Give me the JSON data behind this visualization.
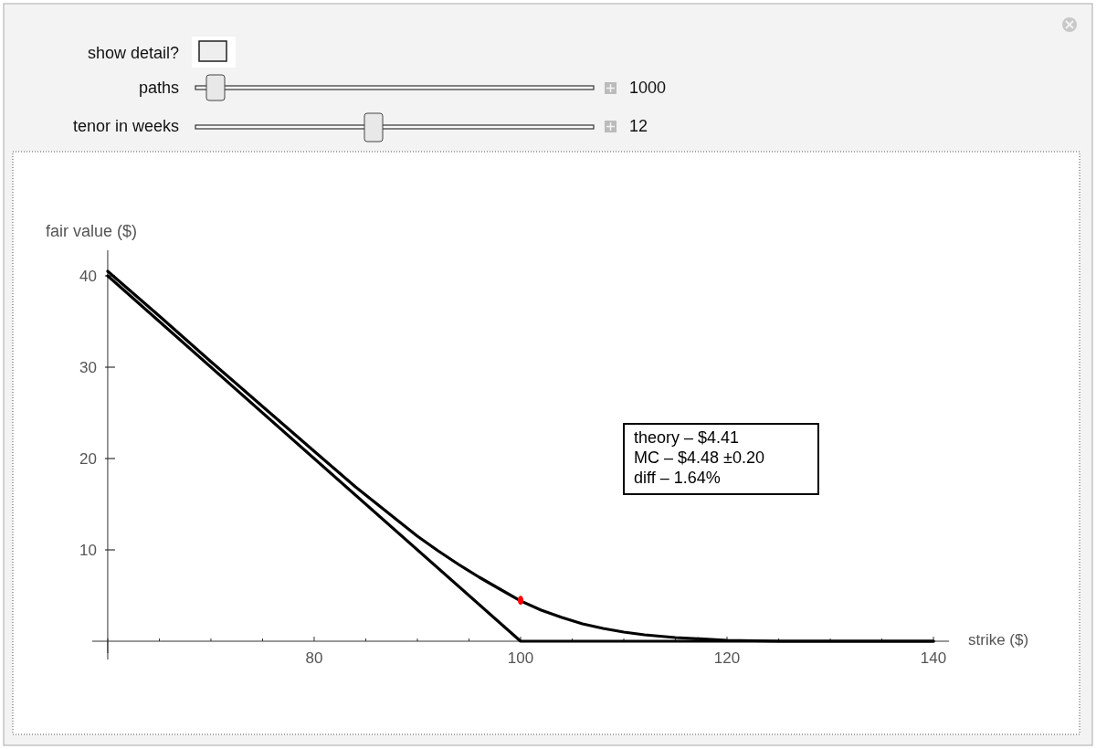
{
  "chart_data": {
    "type": "line",
    "xlabel": "strike ($)",
    "ylabel": "fair value ($)",
    "xlim": [
      58.5,
      141.5
    ],
    "ylim": [
      -1.3,
      42.8
    ],
    "xticks": [
      {
        "value": 60,
        "label": null
      },
      {
        "value": 65,
        "label": null
      },
      {
        "value": 70,
        "label": null
      },
      {
        "value": 75,
        "label": null
      },
      80,
      {
        "value": 85,
        "label": null
      },
      {
        "value": 90,
        "label": null
      },
      {
        "value": 95,
        "label": null
      },
      100,
      {
        "value": 105,
        "label": null
      },
      {
        "value": 110,
        "label": null
      },
      {
        "value": 115,
        "label": null
      },
      120,
      {
        "value": 125,
        "label": null
      },
      {
        "value": 130,
        "label": null
      },
      {
        "value": 135,
        "label": null
      },
      140
    ],
    "yticks": [
      10,
      20,
      30,
      40
    ],
    "grid": false,
    "series": [
      {
        "color": "#000000",
        "x": [
          60,
          65,
          70,
          75,
          80,
          84,
          86,
          88,
          90,
          92,
          94,
          96,
          98,
          100,
          102,
          104,
          106,
          108,
          110,
          112,
          115,
          120,
          125,
          140
        ],
        "values": [
          40.5,
          35.6,
          30.6,
          25.7,
          20.8,
          16.9,
          15.1,
          13.3,
          11.5,
          9.9,
          8.4,
          7.0,
          5.7,
          4.41,
          3.4,
          2.6,
          1.9,
          1.4,
          1.0,
          0.7,
          0.4,
          0.1,
          0,
          0
        ]
      },
      {
        "color": "#000000",
        "x": [
          60,
          100,
          140
        ],
        "values": [
          40,
          0,
          0
        ]
      },
      {
        "type": "scatter",
        "color": "#ff0000",
        "x": [
          100
        ],
        "values": [
          4.48
        ],
        "errors": [
          0.2
        ]
      }
    ],
    "annotations": [
      "theory – $4.41",
      "MC – $4.48 ±0.20",
      "diff – 1.64%",
      "show detail?",
      "paths",
      "1000",
      "tenor in weeks",
      "12"
    ]
  }
}
